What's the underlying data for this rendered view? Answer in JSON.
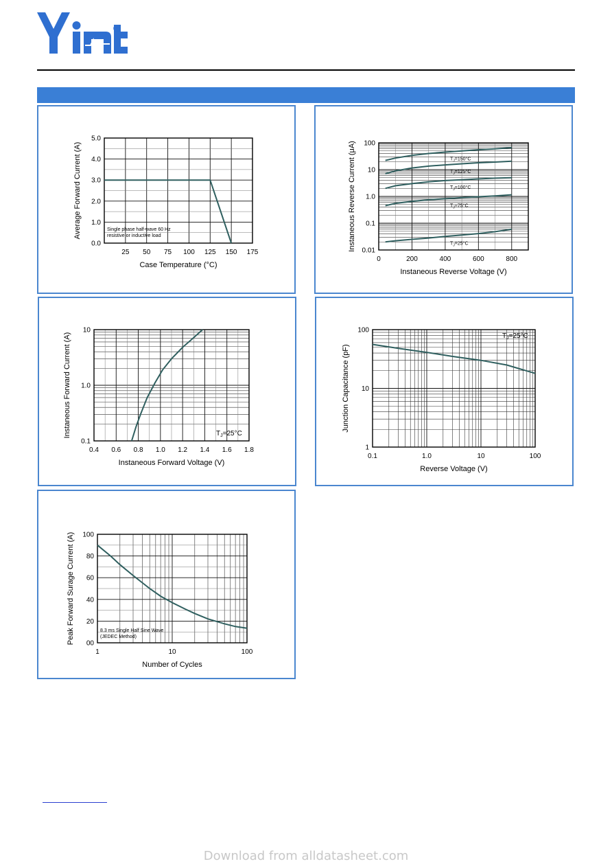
{
  "header": {
    "logo_text": "Yint",
    "registered_mark": "®",
    "accent_color": "#3a7fd6",
    "panel_border_color": "#4a86cf"
  },
  "footer": {
    "watermark": "Download from alldatasheet.com"
  },
  "chart_data": [
    {
      "id": "derating",
      "type": "line",
      "xlabel": "Case Temperature (°C)",
      "ylabel": "Average Forward Current (A)",
      "xlim": [
        0,
        175
      ],
      "ylim": [
        0,
        5
      ],
      "x_ticks": [
        25,
        50,
        75,
        100,
        125,
        150,
        175
      ],
      "x_tick_labels": [
        "25",
        "50",
        "75",
        "100",
        "125",
        "150",
        "175"
      ],
      "y_ticks": [
        0,
        1,
        2,
        3,
        4,
        5
      ],
      "y_tick_labels": [
        "0.0",
        "1.0",
        "2.0",
        "3.0",
        "4.0",
        "5.0"
      ],
      "grid": true,
      "series": [
        {
          "x": [
            0,
            125,
            150
          ],
          "y": [
            3.0,
            3.0,
            0.0
          ]
        }
      ],
      "annotations": [
        "Single phase half-wave 60 Hz",
        "resistive or inductive load"
      ]
    },
    {
      "id": "reverse",
      "type": "line",
      "xlabel": "Instaneous Reverse Voltage (V)",
      "ylabel": "Instaneous Reverse Current (μA)",
      "xlim": [
        0,
        900
      ],
      "ylim": [
        0.01,
        100
      ],
      "yscale": "log",
      "x_ticks": [
        0,
        200,
        400,
        600,
        800
      ],
      "x_tick_labels": [
        "0",
        "200",
        "400",
        "600",
        "800"
      ],
      "y_ticks": [
        0.01,
        0.1,
        1,
        10,
        100
      ],
      "y_tick_labels": [
        "0.01",
        "0.1",
        "1.0",
        "10",
        "100"
      ],
      "grid": true,
      "series": [
        {
          "name": "TJ=150°C",
          "x": [
            40,
            100,
            200,
            300,
            400,
            500,
            600,
            700,
            800
          ],
          "y": [
            22,
            27,
            34,
            40,
            45,
            50,
            55,
            60,
            66
          ]
        },
        {
          "name": "TJ=125°C",
          "x": [
            40,
            100,
            200,
            300,
            400,
            500,
            600,
            700,
            800
          ],
          "y": [
            7.0,
            9.0,
            11.5,
            13.5,
            15.0,
            16.5,
            18.0,
            19.2,
            20.5
          ]
        },
        {
          "name": "TJ=100°C",
          "x": [
            40,
            100,
            200,
            300,
            400,
            500,
            600,
            700,
            800
          ],
          "y": [
            2.0,
            2.5,
            3.0,
            3.5,
            3.9,
            4.2,
            4.5,
            4.8,
            5.0
          ]
        },
        {
          "name": "TJ=75°C",
          "x": [
            40,
            100,
            200,
            300,
            400,
            500,
            600,
            700,
            800
          ],
          "y": [
            0.45,
            0.55,
            0.65,
            0.75,
            0.82,
            0.9,
            0.97,
            1.05,
            1.15
          ]
        },
        {
          "name": "TJ=25°C",
          "x": [
            40,
            100,
            200,
            300,
            400,
            500,
            600,
            700,
            800
          ],
          "y": [
            0.02,
            0.022,
            0.025,
            0.028,
            0.032,
            0.036,
            0.041,
            0.048,
            0.06
          ]
        }
      ],
      "label_prefix": "T",
      "label_sub": "J",
      "curve_labels": [
        "=150°C",
        "=125°C",
        "=100°C",
        "=75°C",
        "=25°C"
      ]
    },
    {
      "id": "forward",
      "type": "line",
      "xlabel": "Instaneous Forward Voltage (V)",
      "ylabel": "Instaneous Forward Current  (A)",
      "xlim": [
        0.4,
        1.8
      ],
      "ylim": [
        0.1,
        10
      ],
      "yscale": "log",
      "x_ticks": [
        0.4,
        0.6,
        0.8,
        1.0,
        1.2,
        1.4,
        1.6,
        1.8
      ],
      "x_tick_labels": [
        "0.4",
        "0.6",
        "0.8",
        "1.0",
        "1.2",
        "1.4",
        "1.6",
        "1.8"
      ],
      "y_ticks": [
        0.1,
        1,
        10
      ],
      "y_tick_labels": [
        "0.1",
        "1.0",
        "10"
      ],
      "grid": true,
      "series": [
        {
          "x": [
            0.74,
            0.78,
            0.82,
            0.88,
            0.95,
            1.02,
            1.1,
            1.2,
            1.3,
            1.38
          ],
          "y": [
            0.1,
            0.18,
            0.3,
            0.6,
            1.1,
            1.9,
            3.0,
            4.8,
            7.2,
            10
          ]
        }
      ],
      "label_prefix": "T",
      "label_sub": "J",
      "condition": "=25°C"
    },
    {
      "id": "capacitance",
      "type": "line",
      "xlabel": "Reverse  Voltage (V)",
      "ylabel": "Junction Capacitance (pF)",
      "xscale": "log",
      "yscale": "log",
      "xlim": [
        0.1,
        100
      ],
      "ylim": [
        1,
        100
      ],
      "x_ticks": [
        0.1,
        1,
        10,
        100
      ],
      "x_tick_labels": [
        "0.1",
        "1.0",
        "10",
        "100"
      ],
      "y_ticks": [
        1,
        10,
        100
      ],
      "y_tick_labels": [
        "1",
        "10",
        "100"
      ],
      "grid": true,
      "series": [
        {
          "x": [
            0.1,
            0.3,
            1,
            3,
            10,
            30,
            100
          ],
          "y": [
            56,
            48,
            41,
            35,
            30,
            25,
            18
          ]
        }
      ],
      "label_prefix": "T",
      "label_sub": "J",
      "condition": "=25°C"
    },
    {
      "id": "surge",
      "type": "line",
      "xlabel": "Number of Cycles",
      "ylabel": "Peak Forward Surage Current (A)",
      "xscale": "log",
      "xlim": [
        1,
        100
      ],
      "ylim": [
        0,
        100
      ],
      "x_ticks": [
        1,
        10,
        100
      ],
      "x_tick_labels": [
        "1",
        "10",
        "100"
      ],
      "y_ticks": [
        0,
        20,
        40,
        60,
        80,
        100
      ],
      "y_tick_labels": [
        "00",
        "20",
        "40",
        "60",
        "80",
        "100"
      ],
      "grid": true,
      "series": [
        {
          "x": [
            1,
            1.5,
            2,
            3,
            5,
            7,
            10,
            15,
            20,
            30,
            50,
            70,
            100
          ],
          "y": [
            90,
            80,
            72,
            62,
            50,
            43,
            37,
            31,
            27,
            22,
            17.5,
            15,
            13.5
          ]
        }
      ],
      "annotations": [
        "8.3 ms Single Half Sine Wave",
        "(JEDEC Method)"
      ]
    }
  ]
}
